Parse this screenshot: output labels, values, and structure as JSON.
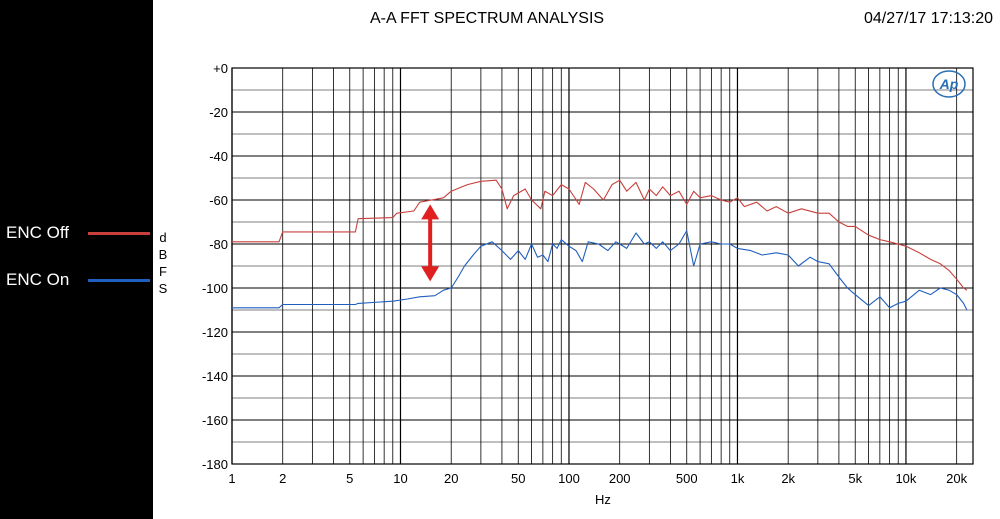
{
  "legend": {
    "items": [
      {
        "label": "ENC Off",
        "color": "#c8403c"
      },
      {
        "label": "ENC On",
        "color": "#1f5fbf"
      }
    ]
  },
  "chart_data": {
    "type": "line",
    "title": "A-A FFT SPECTRUM ANALYSIS",
    "timestamp": "04/27/17 17:13:20",
    "xlabel": "Hz",
    "ylabel": "dBFS",
    "xscale": "log",
    "xlim": [
      1,
      25000
    ],
    "ylim": [
      -180,
      0
    ],
    "grid": true,
    "x_tick_labels": [
      {
        "v": 1,
        "t": "1"
      },
      {
        "v": 2,
        "t": "2"
      },
      {
        "v": 5,
        "t": "5"
      },
      {
        "v": 10,
        "t": "10"
      },
      {
        "v": 20,
        "t": "20"
      },
      {
        "v": 50,
        "t": "50"
      },
      {
        "v": 100,
        "t": "100"
      },
      {
        "v": 200,
        "t": "200"
      },
      {
        "v": 500,
        "t": "500"
      },
      {
        "v": 1000,
        "t": "1k"
      },
      {
        "v": 2000,
        "t": "2k"
      },
      {
        "v": 5000,
        "t": "5k"
      },
      {
        "v": 10000,
        "t": "10k"
      },
      {
        "v": 20000,
        "t": "20k"
      }
    ],
    "y_tick_labels": [
      {
        "v": 0,
        "t": "+0"
      },
      {
        "v": -20,
        "t": "-20"
      },
      {
        "v": -40,
        "t": "-40"
      },
      {
        "v": -60,
        "t": "-60"
      },
      {
        "v": -80,
        "t": "-80"
      },
      {
        "v": -100,
        "t": "-100"
      },
      {
        "v": -120,
        "t": "-120"
      },
      {
        "v": -140,
        "t": "-140"
      },
      {
        "v": -160,
        "t": "-160"
      },
      {
        "v": -180,
        "t": "-180"
      }
    ],
    "annotation": {
      "type": "double-arrow",
      "x": 15,
      "y_top": -62,
      "y_bottom": -97,
      "color": "#e02020"
    },
    "series": [
      {
        "color": "#c8403c",
        "points": [
          [
            1,
            -79
          ],
          [
            1.9,
            -79
          ],
          [
            2,
            -74.5
          ],
          [
            5.4,
            -74.5
          ],
          [
            5.6,
            -68.5
          ],
          [
            9,
            -68
          ],
          [
            9.5,
            -66
          ],
          [
            12,
            -65
          ],
          [
            13,
            -61
          ],
          [
            18,
            -59
          ],
          [
            20,
            -56
          ],
          [
            25,
            -53
          ],
          [
            30,
            -51.5
          ],
          [
            37,
            -51
          ],
          [
            40,
            -55
          ],
          [
            43,
            -64
          ],
          [
            47,
            -58
          ],
          [
            55,
            -55
          ],
          [
            60,
            -60
          ],
          [
            68,
            -64
          ],
          [
            72,
            -56
          ],
          [
            80,
            -58
          ],
          [
            90,
            -53
          ],
          [
            100,
            -55
          ],
          [
            115,
            -62
          ],
          [
            125,
            -52
          ],
          [
            140,
            -55
          ],
          [
            160,
            -60
          ],
          [
            180,
            -53
          ],
          [
            200,
            -51
          ],
          [
            220,
            -56
          ],
          [
            250,
            -52
          ],
          [
            280,
            -60
          ],
          [
            300,
            -55
          ],
          [
            330,
            -58
          ],
          [
            360,
            -54
          ],
          [
            400,
            -58
          ],
          [
            450,
            -56
          ],
          [
            500,
            -62
          ],
          [
            550,
            -56
          ],
          [
            600,
            -59
          ],
          [
            700,
            -58
          ],
          [
            800,
            -60
          ],
          [
            900,
            -61
          ],
          [
            1000,
            -59
          ],
          [
            1100,
            -63
          ],
          [
            1300,
            -61
          ],
          [
            1500,
            -65
          ],
          [
            1700,
            -63
          ],
          [
            2000,
            -66
          ],
          [
            2400,
            -64
          ],
          [
            3000,
            -66
          ],
          [
            3500,
            -66
          ],
          [
            4000,
            -70
          ],
          [
            4500,
            -72
          ],
          [
            5000,
            -72
          ],
          [
            6000,
            -76
          ],
          [
            7000,
            -78
          ],
          [
            8000,
            -79
          ],
          [
            10000,
            -81
          ],
          [
            12000,
            -84
          ],
          [
            14000,
            -87
          ],
          [
            16000,
            -89
          ],
          [
            18000,
            -92
          ],
          [
            20000,
            -96
          ],
          [
            22000,
            -100
          ],
          [
            23000,
            -101
          ]
        ]
      },
      {
        "color": "#1f5fbf",
        "points": [
          [
            1,
            -109
          ],
          [
            1.9,
            -109
          ],
          [
            2,
            -107.5
          ],
          [
            5.4,
            -107.5
          ],
          [
            5.6,
            -107
          ],
          [
            9,
            -106
          ],
          [
            11,
            -105
          ],
          [
            13,
            -104
          ],
          [
            16,
            -103.5
          ],
          [
            18,
            -101
          ],
          [
            20,
            -100
          ],
          [
            22,
            -95
          ],
          [
            24,
            -90
          ],
          [
            27,
            -85
          ],
          [
            30,
            -81
          ],
          [
            35,
            -79
          ],
          [
            40,
            -83
          ],
          [
            45,
            -87
          ],
          [
            50,
            -83
          ],
          [
            55,
            -87
          ],
          [
            60,
            -80
          ],
          [
            65,
            -86
          ],
          [
            70,
            -85
          ],
          [
            75,
            -88
          ],
          [
            80,
            -80
          ],
          [
            85,
            -82
          ],
          [
            90,
            -78
          ],
          [
            100,
            -81
          ],
          [
            110,
            -83
          ],
          [
            120,
            -88
          ],
          [
            130,
            -79
          ],
          [
            150,
            -80
          ],
          [
            170,
            -83
          ],
          [
            190,
            -79
          ],
          [
            200,
            -80
          ],
          [
            220,
            -82
          ],
          [
            250,
            -75
          ],
          [
            280,
            -80
          ],
          [
            300,
            -79
          ],
          [
            330,
            -82
          ],
          [
            360,
            -79
          ],
          [
            400,
            -83
          ],
          [
            450,
            -80
          ],
          [
            500,
            -74
          ],
          [
            550,
            -90
          ],
          [
            600,
            -80
          ],
          [
            700,
            -79
          ],
          [
            800,
            -80
          ],
          [
            900,
            -80
          ],
          [
            1000,
            -82
          ],
          [
            1200,
            -83
          ],
          [
            1400,
            -85
          ],
          [
            1700,
            -84
          ],
          [
            2000,
            -85
          ],
          [
            2300,
            -90
          ],
          [
            2700,
            -86
          ],
          [
            3000,
            -88
          ],
          [
            3500,
            -89
          ],
          [
            4000,
            -95
          ],
          [
            4500,
            -100
          ],
          [
            5000,
            -103
          ],
          [
            6000,
            -108
          ],
          [
            7000,
            -104
          ],
          [
            8000,
            -109
          ],
          [
            9000,
            -107
          ],
          [
            10000,
            -106
          ],
          [
            12000,
            -101
          ],
          [
            14000,
            -103
          ],
          [
            16000,
            -100
          ],
          [
            18000,
            -101
          ],
          [
            20000,
            -103
          ],
          [
            22000,
            -107
          ],
          [
            23000,
            -110
          ]
        ]
      }
    ]
  }
}
